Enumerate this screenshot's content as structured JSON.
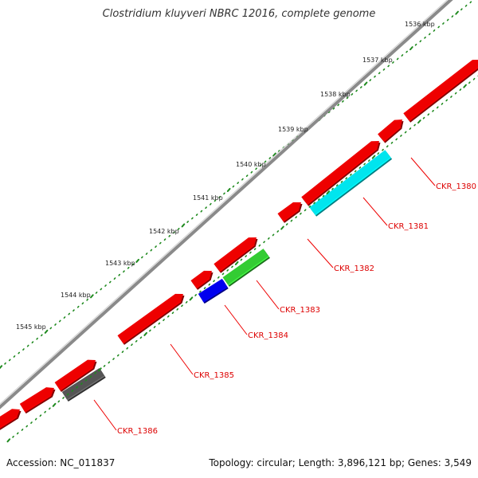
{
  "title": "Clostridium kluyveri NBRC 12016, complete genome",
  "footer": {
    "accession": "Accession: NC_011837",
    "summary": "Topology: circular; Length: 3,896,121 bp; Genes: 3,549"
  },
  "colors": {
    "backbone": "#8a8a8a",
    "tick": "#1f8a1f",
    "gene_forward": "#ee0000",
    "gene_label": "#dd0000",
    "leader_line": "#ee0000"
  },
  "ruler": {
    "tick_labels": [
      "1536 kbp",
      "1537 kbp",
      "1538 kbp",
      "1539 kbp",
      "1540 kbp",
      "1541 kbp",
      "1542 kbp",
      "1543 kbp",
      "1544 kbp",
      "1545 kbp"
    ]
  },
  "gene_labels": [
    {
      "id": "CKR_1380",
      "color": "#ee0000"
    },
    {
      "id": "CKR_1381",
      "color": "#00e5ee"
    },
    {
      "id": "CKR_1382",
      "color": "#ee0000"
    },
    {
      "id": "CKR_1383",
      "color": "#33cc33"
    },
    {
      "id": "CKR_1384",
      "color": "#0000ee"
    },
    {
      "id": "CKR_1385",
      "color": "#ee0000"
    },
    {
      "id": "CKR_1386",
      "color": "#555555"
    }
  ]
}
